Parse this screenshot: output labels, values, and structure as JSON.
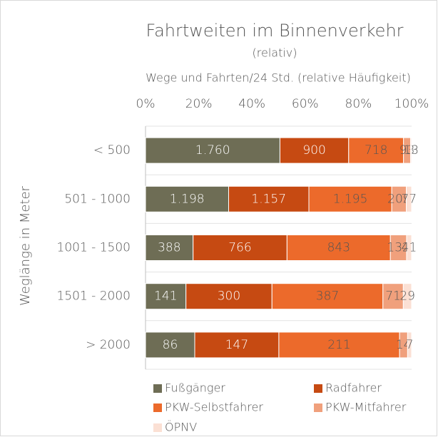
{
  "chart_data": {
    "type": "bar",
    "orientation": "horizontal",
    "stacking": "percent",
    "title": "Fahrtweiten im Binnenverkehr",
    "subtitle": "(relativ)",
    "x_label": "Wege und Fahrten/24 Std. (relative Häufigkeit)",
    "y_label": "Weglänge in Meter",
    "categories": [
      "< 500",
      "501 - 1000",
      "1001 - 1500",
      "1501 - 2000",
      "> 2000"
    ],
    "series": [
      {
        "name": "Fußgänger",
        "color": "#6e6d55",
        "values": [
          1760,
          1198,
          388,
          141,
          86
        ],
        "value_labels": [
          "1.760",
          "1.198",
          "388",
          "141",
          "86"
        ]
      },
      {
        "name": "Radfahrer",
        "color": "#c64a12",
        "values": [
          900,
          1157,
          766,
          300,
          147
        ],
        "value_labels": [
          "900",
          "1.157",
          "766",
          "300",
          "147"
        ]
      },
      {
        "name": "PKW-Selbstfahrer",
        "color": "#ec6a2b",
        "values": [
          718,
          1195,
          843,
          387,
          211
        ],
        "value_labels": [
          "718",
          "1.195",
          "843",
          "387",
          "211"
        ]
      },
      {
        "name": "PKW-Mitfahrer",
        "color": "#f0a07c",
        "values": [
          93,
          209,
          132,
          71,
          14
        ]
      },
      {
        "name": "ÖPNV",
        "color": "#fbe0d4",
        "values": [
          13,
          77,
          41,
          29,
          7
        ]
      }
    ],
    "xlim": [
      0,
      100
    ],
    "xticks": [
      {
        "value": 0,
        "label": "0%"
      },
      {
        "value": 20,
        "label": "20%"
      },
      {
        "value": 40,
        "label": "40%"
      },
      {
        "value": 60,
        "label": "60%"
      },
      {
        "value": 80,
        "label": "80%"
      },
      {
        "value": 100,
        "label": "100%"
      }
    ],
    "legend": "bottom"
  }
}
